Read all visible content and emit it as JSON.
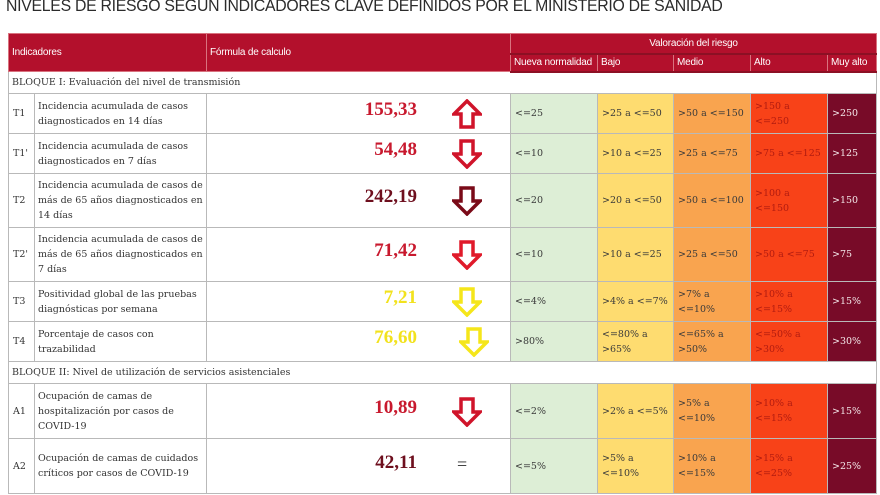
{
  "title": "NIVELES DE RIESGO SEGÚN INDICADORES CLAVE DEFINIDOS POR EL MINISTERIO DE SANIDAD",
  "header": {
    "indicadores": "Indicadores",
    "formula": "Fórmula de calculo",
    "valoracion": "Valoración del riesgo",
    "levels": [
      "Nueva normalidad",
      "Bajo",
      "Medio",
      "Alto",
      "Muy alto"
    ]
  },
  "colors": {
    "header_bg": "#b3102c",
    "nueva_normalidad": "#ddeed6",
    "bajo": "#fedc70",
    "medio": "#f9a44f",
    "alto": "#f84218",
    "muy_alto": "#780b28",
    "value_red": "#c8192e",
    "value_darkred": "#6e0f1e",
    "value_yellow": "#f2e21e"
  },
  "blocks": [
    {
      "label": "BLOQUE I: Evaluación del nivel de transmisión",
      "rows": [
        {
          "code": "T1",
          "indicator": "Incidencia acumulada de casos diagnosticados en 14 días",
          "value": "155,33",
          "trend": "up",
          "value_color": "#c8192e",
          "arrow_color": "#d0142a",
          "ranges": [
            "<=25",
            ">25 a <=50",
            ">50 a <=150",
            ">150 a <=250",
            ">250"
          ]
        },
        {
          "code": "T1'",
          "indicator": "Incidencia acumulada de casos diagnosticados en 7 días",
          "value": "54,48",
          "trend": "down",
          "value_color": "#c8192e",
          "arrow_color": "#d0142a",
          "ranges": [
            "<=10",
            ">10 a <=25",
            ">25 a <=75",
            ">75 a <=125",
            ">125"
          ]
        },
        {
          "code": "T2",
          "indicator": "Incidencia acumulada de casos de más de 65 años diagnosticados en 14 días",
          "value": "242,19",
          "trend": "down",
          "value_color": "#6e0f1e",
          "arrow_color": "#7a0a18",
          "ranges": [
            "<=20",
            ">20 a <=50",
            ">50 a <=100",
            ">100 a <=150",
            ">150"
          ]
        },
        {
          "code": "T2'",
          "indicator": "Incidencia acumulada de casos de más de 65 años diagnosticados en 7 días",
          "value": "71,42",
          "trend": "down",
          "value_color": "#c8192e",
          "arrow_color": "#e01a2a",
          "ranges": [
            "<=10",
            ">10 a <=25",
            ">25 a <=50",
            ">50 a <=75",
            ">75"
          ]
        },
        {
          "code": "T3",
          "indicator": "Positividad global de las pruebas diagnósticas por semana",
          "value": "7,21",
          "trend": "down",
          "value_color": "#f2e21e",
          "arrow_color": "#f5e61a",
          "ranges": [
            "<=4%",
            ">4% a <=7%",
            ">7% a <=10%",
            ">10% a <=15%",
            ">15%"
          ]
        },
        {
          "code": "T4",
          "indicator": "Porcentaje de casos con trazabilidad",
          "value": "76,60",
          "trend": "down",
          "value_color": "#f2e21e",
          "arrow_color": "#f5e61a",
          "ranges": [
            ">80%",
            "<=80% a >65%",
            "<=65% a >50%",
            "<=50% a >30%",
            ">30%"
          ]
        }
      ]
    },
    {
      "label": "BLOQUE II: Nivel de utilización de servicios asistenciales",
      "rows": [
        {
          "code": "A1",
          "indicator": "Ocupación de camas de hospitalización por casos de COVID-19",
          "value": "10,89",
          "trend": "down",
          "value_color": "#c8192e",
          "arrow_color": "#d0142a",
          "ranges": [
            "<=2%",
            ">2% a <=5%",
            ">5% a <=10%",
            ">10% a <=15%",
            ">15%"
          ]
        },
        {
          "code": "A2",
          "indicator": "Ocupación de camas de cuidados críticos por casos de COVID-19",
          "value": "42,11",
          "trend": "equal",
          "trend_symbol": "=",
          "value_color": "#6e0f1e",
          "ranges": [
            "<=5%",
            ">5% a <=10%",
            ">10% a <=15%",
            ">15% a <=25%",
            ">25%"
          ]
        }
      ]
    }
  ]
}
